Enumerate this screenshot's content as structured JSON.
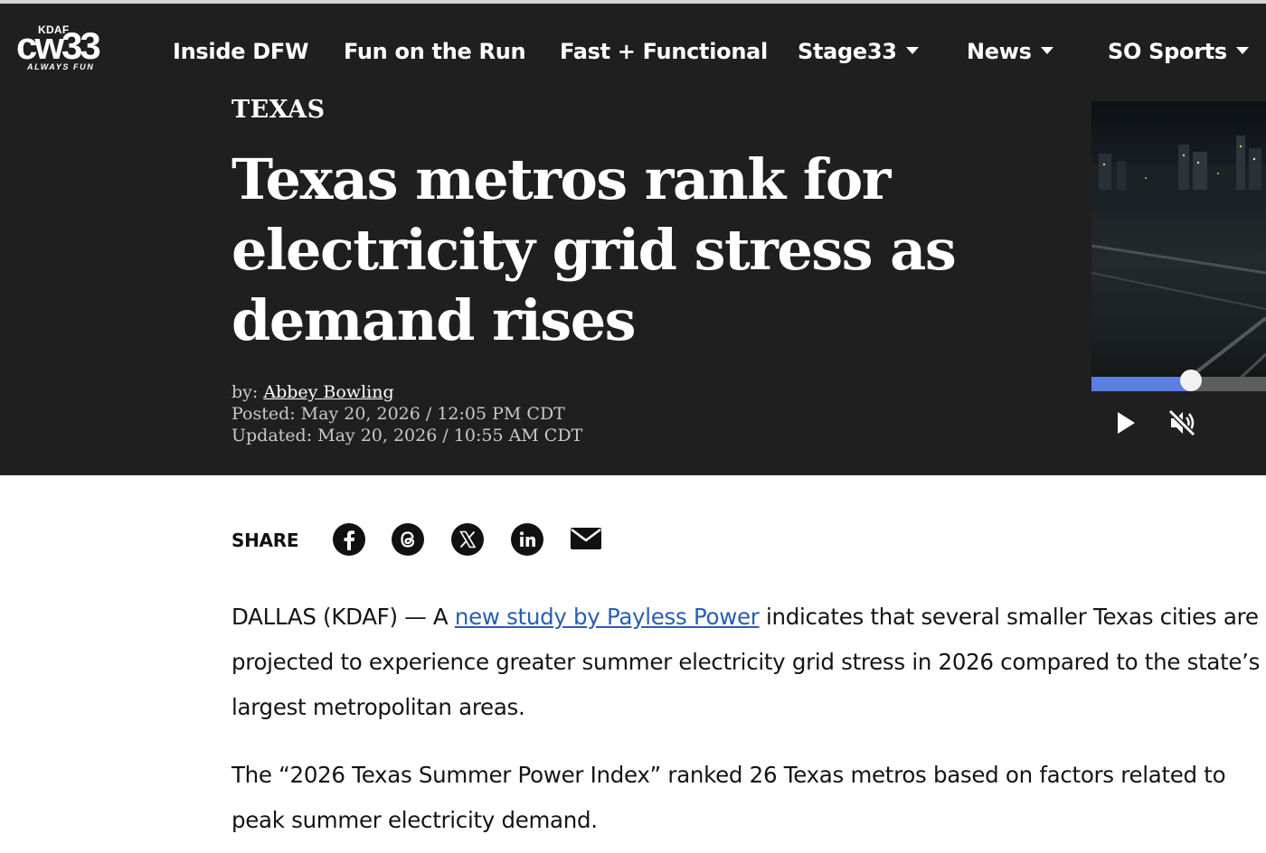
{
  "brand": {
    "kdaf": "KDAF",
    "cw": "cw33",
    "tagline": "ALWAYS FUN"
  },
  "nav": {
    "items": [
      {
        "label": "Inside DFW",
        "dropdown": false
      },
      {
        "label": "Fun on the Run",
        "dropdown": false
      },
      {
        "label": "Fast + Functional",
        "dropdown": false
      },
      {
        "label": "Stage33",
        "dropdown": true
      },
      {
        "label": "News",
        "dropdown": true
      },
      {
        "label": "SO Sports",
        "dropdown": true
      }
    ]
  },
  "article": {
    "kicker": "TEXAS",
    "headline": "Texas metros rank for electricity grid stress as demand rises",
    "byline_prefix": "by: ",
    "author": "Abbey Bowling",
    "posted": "Posted: May 20, 2026 / 12:05 PM CDT",
    "updated": "Updated: May 20, 2026 / 10:55 AM CDT"
  },
  "share": {
    "label": "SHARE",
    "icons": [
      "facebook-icon",
      "threads-icon",
      "x-icon",
      "linkedin-icon",
      "email-icon"
    ]
  },
  "body": {
    "p1_prefix": "DALLAS (KDAF) — A ",
    "p1_link": "new study by Payless Power",
    "p1_suffix": " indicates that several smaller Texas cities are projected to experience greater summer electricity grid stress in 2026 compared to the state’s largest metropolitan areas.",
    "p2": "The “2026 Texas Summer Power Index” ranked 26 Texas metros based on factors related to peak summer electricity demand."
  },
  "video": {
    "progress": 0.57,
    "muted": true
  },
  "colors": {
    "hero_bg": "#1f1f1f",
    "link": "#2a5db0",
    "progress": "#5b7fe0"
  }
}
